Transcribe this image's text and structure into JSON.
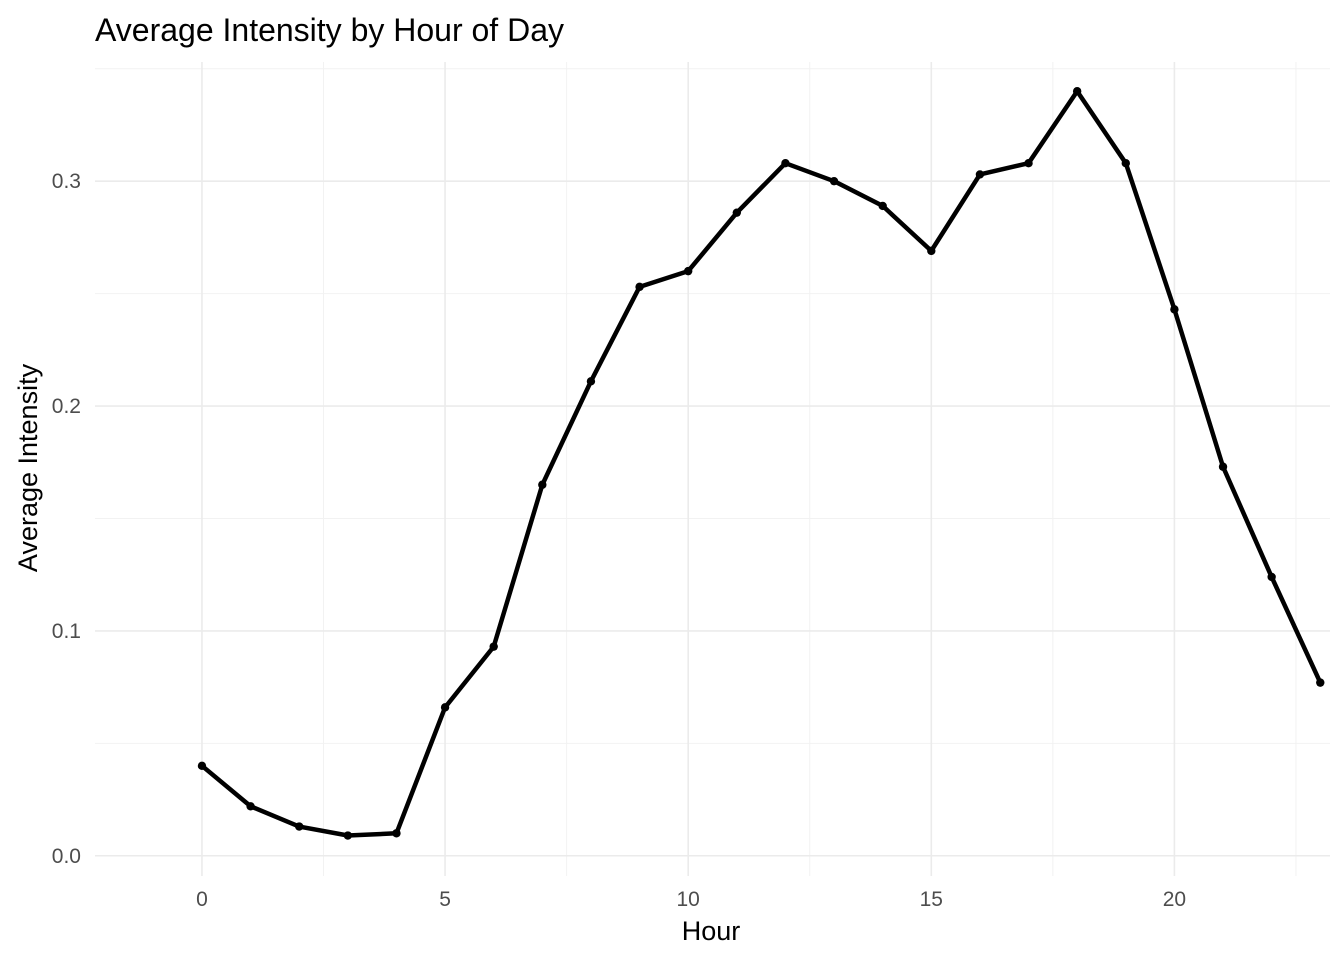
{
  "chart_data": {
    "type": "line",
    "title": "Average Intensity by Hour of Day",
    "xlabel": "Hour",
    "ylabel": "Average Intensity",
    "xlim": [
      -2.2,
      23.2
    ],
    "ylim": [
      -0.009,
      0.353
    ],
    "x_ticks": [
      0,
      5,
      10,
      15,
      20
    ],
    "y_ticks": [
      0.0,
      0.1,
      0.2,
      0.3
    ],
    "x_tick_labels": [
      "0",
      "5",
      "10",
      "15",
      "20"
    ],
    "y_tick_labels": [
      "0.0",
      "0.1",
      "0.2",
      "0.3"
    ],
    "grid": true,
    "legend": "none",
    "series": [
      {
        "color": "#000000",
        "x": [
          0,
          1,
          2,
          3,
          4,
          5,
          6,
          7,
          8,
          9,
          10,
          11,
          12,
          13,
          14,
          15,
          16,
          17,
          18,
          19,
          20,
          21,
          22,
          23
        ],
        "values": [
          0.04,
          0.022,
          0.013,
          0.009,
          0.01,
          0.066,
          0.093,
          0.165,
          0.211,
          0.253,
          0.26,
          0.286,
          0.308,
          0.3,
          0.289,
          0.269,
          0.303,
          0.308,
          0.34,
          0.308,
          0.243,
          0.173,
          0.124,
          0.077
        ]
      }
    ]
  }
}
